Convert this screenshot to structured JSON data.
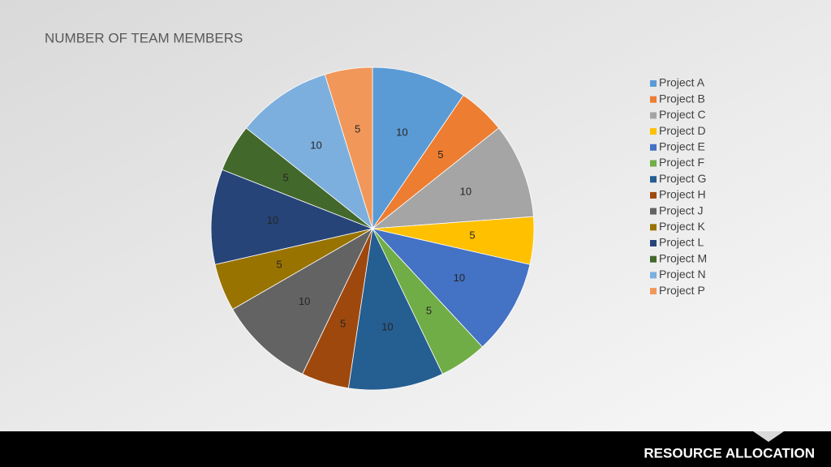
{
  "chart_data": {
    "type": "pie",
    "title": "NUMBER OF TEAM MEMBERS",
    "categories": [
      "Project A",
      "Project B",
      "Project C",
      "Project D",
      "Project E",
      "Project F",
      "Project G",
      "Project H",
      "Project J",
      "Project K",
      "Project L",
      "Project M",
      "Project N",
      "Project P"
    ],
    "values": [
      10,
      5,
      10,
      5,
      10,
      5,
      10,
      5,
      10,
      5,
      10,
      5,
      10,
      5
    ],
    "colors": [
      "#5b9bd5",
      "#ed7d31",
      "#a5a5a5",
      "#ffc000",
      "#4472c4",
      "#70ad47",
      "#255e91",
      "#9e480e",
      "#636363",
      "#997300",
      "#264478",
      "#43682b",
      "#7cafdd",
      "#f1975a"
    ],
    "legend": "right"
  },
  "footer": {
    "label": "RESOURCE ALLOCATION"
  }
}
